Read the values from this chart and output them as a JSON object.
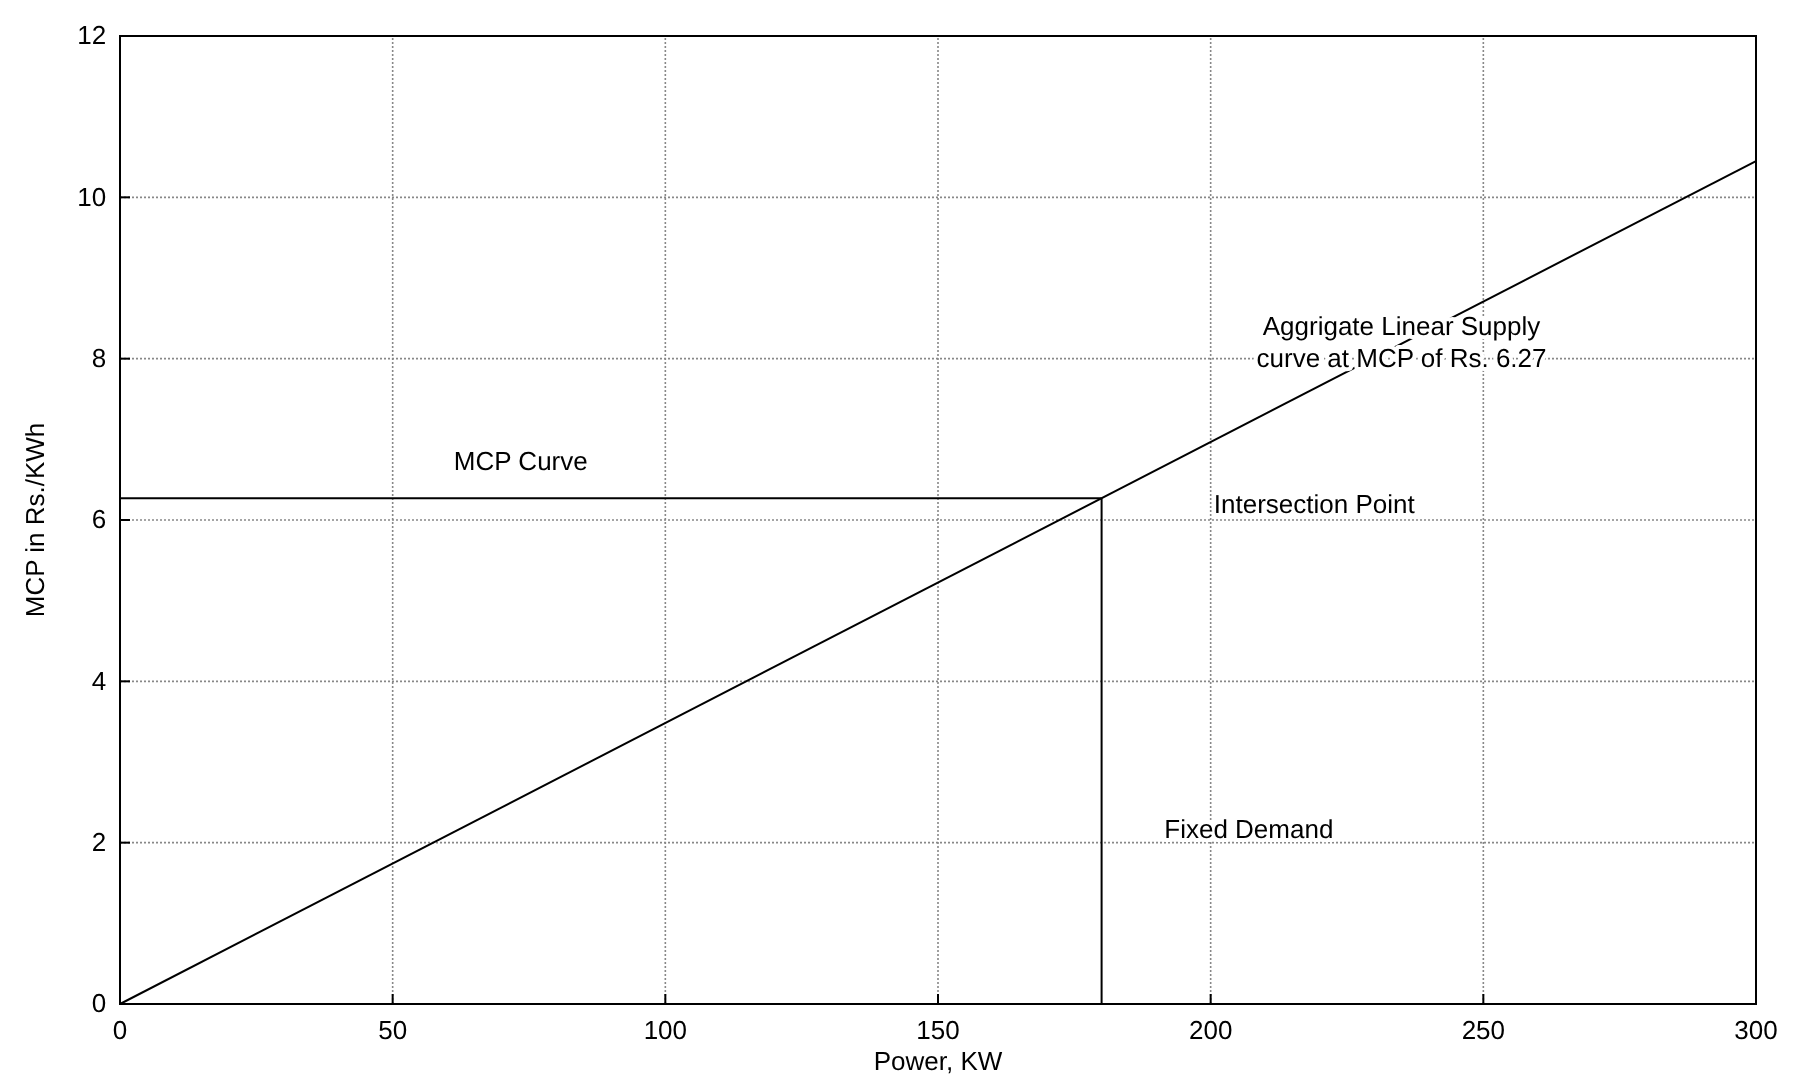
{
  "chart_data": {
    "type": "line",
    "xlabel": "Power, KW",
    "ylabel": "MCP in Rs./KWh",
    "xlim": [
      0,
      300
    ],
    "xticks": [
      0,
      50,
      100,
      150,
      200,
      250,
      300
    ],
    "ylim": [
      0,
      12
    ],
    "yticks": [
      0,
      2,
      4,
      6,
      8,
      10,
      12
    ],
    "grid": true,
    "line_style": "solid",
    "marker": "none",
    "series": [
      {
        "color": "#000000",
        "x": [
          0,
          300
        ],
        "values": [
          0,
          10.45
        ]
      },
      {
        "color": "#000000",
        "x": [
          0,
          180
        ],
        "values": [
          6.27,
          6.27
        ]
      },
      {
        "color": "#000000",
        "x": [
          180,
          180
        ],
        "values": [
          0,
          6.27
        ]
      }
    ],
    "annotations": [
      "MCP Curve",
      {
        "text": "Aggrigate Linear Supply\ncurve at MCP of Rs. 6.27",
        "x": 235,
        "y": 8.2
      },
      "Intersection Point",
      "Fixed Demand"
    ]
  }
}
